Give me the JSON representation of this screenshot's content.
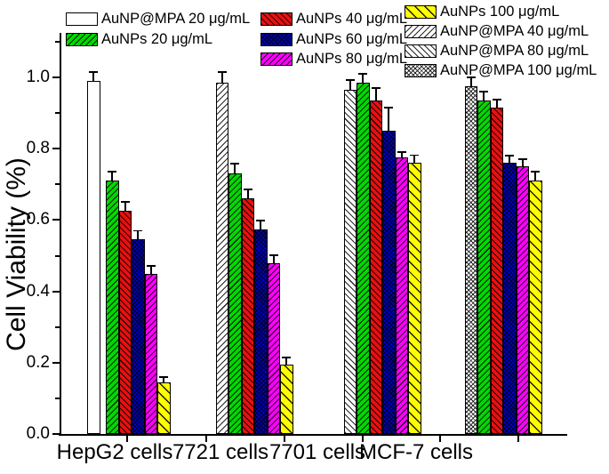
{
  "chart_data": {
    "type": "bar",
    "title": "",
    "xlabel": "",
    "ylabel": "Cell Viability (%)",
    "ylim": [
      0.0,
      1.13
    ],
    "grid": false,
    "legend_position": "top",
    "yticks_major": [
      0.0,
      0.2,
      0.4,
      0.6,
      0.8,
      1.0
    ],
    "ytick_labels": [
      "0.0",
      "0.2",
      "0.4",
      "0.6",
      "0.8",
      "1.0"
    ],
    "yticks_minor": [
      0.1,
      0.3,
      0.5,
      0.7,
      0.9,
      1.1
    ],
    "categories": [
      "HepG2 cells",
      "7721 cells",
      "7701 cells",
      "MCF-7 cells"
    ],
    "styles": {
      "mpa20": {
        "fill": "#FFFFFF",
        "hatch": "none"
      },
      "aunps20": {
        "fill": "#00D900",
        "hatch": "fwd"
      },
      "aunps40": {
        "fill": "#E81010",
        "hatch": "back"
      },
      "aunps60": {
        "fill": "#0000CD",
        "hatch": "cross"
      },
      "aunps80": {
        "fill": "#FF00FF",
        "hatch": "fwd"
      },
      "aunps100": {
        "fill": "#FFFF00",
        "hatch": "back-wide"
      },
      "mpa40": {
        "fill": "#FFFFFF",
        "hatch": "fwd"
      },
      "mpa80": {
        "fill": "#FFFFFF",
        "hatch": "back"
      },
      "mpa100": {
        "fill": "#FFFFFF",
        "hatch": "cross"
      }
    },
    "series_legend": [
      {
        "label": "AuNP@MPA 20 μg/mL",
        "style": "mpa20"
      },
      {
        "label": "AuNPs 20 μg/mL",
        "style": "aunps20"
      },
      {
        "label": "AuNPs 40 μg/mL",
        "style": "aunps40"
      },
      {
        "label": "AuNPs 60 μg/mL",
        "style": "aunps60"
      },
      {
        "label": "AuNPs 80 μg/mL",
        "style": "aunps80"
      },
      {
        "label": "AuNPs 100 μg/mL",
        "style": "aunps100"
      },
      {
        "label": "AuNP@MPA 40 μg/mL",
        "style": "mpa40"
      },
      {
        "label": "AuNP@MPA 80 μg/mL",
        "style": "mpa80"
      },
      {
        "label": "AuNP@MPA 100 μg/mL",
        "style": "mpa100"
      }
    ],
    "legend_columns": [
      [
        "AuNP@MPA 20 μg/mL",
        "AuNPs 20 μg/mL"
      ],
      [
        "AuNPs 40 μg/mL",
        "AuNPs 60 μg/mL",
        "AuNPs 80 μg/mL"
      ],
      [
        "AuNPs 100 μg/mL",
        "AuNP@MPA 40 μg/mL",
        "AuNP@MPA 80 μg/mL",
        "AuNP@MPA 100 μg/mL"
      ]
    ],
    "groups": [
      {
        "category": "HepG2 cells",
        "bars": [
          {
            "series": "AuNP@MPA 20 μg/mL",
            "value": 0.99,
            "error": 0.025
          },
          {
            "series": "AuNPs 20 μg/mL",
            "value": 0.71,
            "error": 0.025
          },
          {
            "series": "AuNPs 40 μg/mL",
            "value": 0.625,
            "error": 0.025
          },
          {
            "series": "AuNPs 60 μg/mL",
            "value": 0.545,
            "error": 0.025
          },
          {
            "series": "AuNPs 80 μg/mL",
            "value": 0.45,
            "error": 0.022
          },
          {
            "series": "AuNPs 100 μg/mL",
            "value": 0.145,
            "error": 0.015
          }
        ]
      },
      {
        "category": "7721 cells",
        "bars": [
          {
            "series": "AuNP@MPA 40 μg/mL",
            "value": 0.985,
            "error": 0.03
          },
          {
            "series": "AuNPs 20 μg/mL",
            "value": 0.73,
            "error": 0.028
          },
          {
            "series": "AuNPs 40 μg/mL",
            "value": 0.66,
            "error": 0.025
          },
          {
            "series": "AuNPs 60 μg/mL",
            "value": 0.573,
            "error": 0.025
          },
          {
            "series": "AuNPs 80 μg/mL",
            "value": 0.48,
            "error": 0.022
          },
          {
            "series": "AuNPs 100 μg/mL",
            "value": 0.195,
            "error": 0.02
          }
        ]
      },
      {
        "category": "7701 cells",
        "bars": [
          {
            "series": "AuNP@MPA 80 μg/mL",
            "value": 0.965,
            "error": 0.027
          },
          {
            "series": "AuNPs 20 μg/mL",
            "value": 0.985,
            "error": 0.025
          },
          {
            "series": "AuNPs 40 μg/mL",
            "value": 0.935,
            "error": 0.035
          },
          {
            "series": "AuNPs 60 μg/mL",
            "value": 0.85,
            "error": 0.065
          },
          {
            "series": "AuNPs 80 μg/mL",
            "value": 0.775,
            "error": 0.016
          },
          {
            "series": "AuNPs 100 μg/mL",
            "value": 0.76,
            "error": 0.022
          }
        ]
      },
      {
        "category": "MCF-7 cells",
        "bars": [
          {
            "series": "AuNP@MPA 100 μg/mL",
            "value": 0.975,
            "error": 0.025
          },
          {
            "series": "AuNPs 20 μg/mL",
            "value": 0.935,
            "error": 0.025
          },
          {
            "series": "AuNPs 40 μg/mL",
            "value": 0.915,
            "error": 0.022
          },
          {
            "series": "AuNPs 60 μg/mL",
            "value": 0.76,
            "error": 0.02
          },
          {
            "series": "AuNPs 80 μg/mL",
            "value": 0.75,
            "error": 0.02
          },
          {
            "series": "AuNPs 100 μg/mL",
            "value": 0.71,
            "error": 0.025
          }
        ]
      }
    ],
    "colors": {
      "bar_border": "#000000",
      "axis": "#000000",
      "text": "#000000",
      "green": "#00D900",
      "red": "#E81010",
      "blue": "#0000CD",
      "magenta": "#FF00FF",
      "yellow": "#FFFF00",
      "white": "#FFFFFF"
    }
  }
}
